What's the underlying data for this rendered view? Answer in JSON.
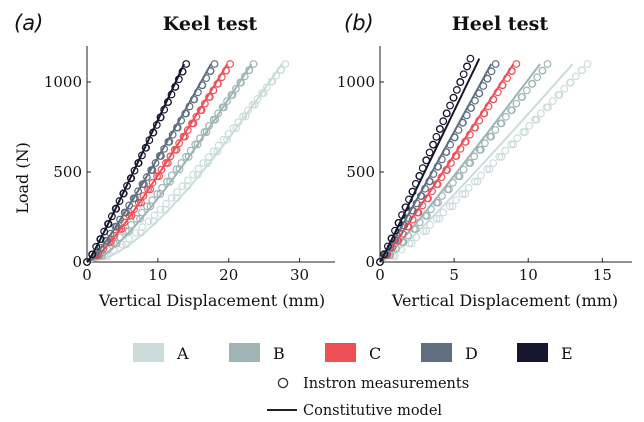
{
  "panels": [
    {
      "tag": "(",
      "tag_letter": "a",
      "tag_close": ")",
      "title": "Keel test"
    },
    {
      "tag": "(",
      "tag_letter": "b",
      "tag_close": ")",
      "title": "Heel test"
    }
  ],
  "legend": {
    "series": [
      {
        "name": "A",
        "color": "#ccdcdb"
      },
      {
        "name": "B",
        "color": "#9fb4b5"
      },
      {
        "name": "C",
        "color": "#ef5056"
      },
      {
        "name": "D",
        "color": "#5f6f80"
      },
      {
        "name": "E",
        "color": "#16162e"
      }
    ],
    "markers_label": "Instron measurements",
    "line_label": "Constitutive model"
  },
  "chart_data": [
    {
      "type": "scatter",
      "title": "Keel test",
      "xlabel": "Vertical Displacement (mm)",
      "ylabel": "Load (N)",
      "xlim": [
        0,
        35
      ],
      "ylim": [
        0,
        1200
      ],
      "xticks": [
        0,
        10,
        20,
        30
      ],
      "yticks": [
        0,
        500,
        1000
      ],
      "grid": false,
      "series": [
        {
          "name": "A",
          "color": "#ccdcdb",
          "xmax_meas": 28,
          "xmax_model": 27.5,
          "ymax": 1100,
          "curv_meas": 0.42,
          "curv_model": 0.62,
          "npts": 34
        },
        {
          "name": "B",
          "color": "#9fb4b5",
          "xmax_meas": 23.5,
          "xmax_model": 23.2,
          "ymax": 1100,
          "curv_meas": 0.32,
          "curv_model": 0.45,
          "npts": 32
        },
        {
          "name": "C",
          "color": "#ef5056",
          "xmax_meas": 20.2,
          "xmax_model": 19.8,
          "ymax": 1100,
          "curv_meas": 0.25,
          "curv_model": 0.3,
          "npts": 30
        },
        {
          "name": "D",
          "color": "#5f6f80",
          "xmax_meas": 18,
          "xmax_model": 17.5,
          "ymax": 1100,
          "curv_meas": 0.18,
          "curv_model": 0.22,
          "npts": 28
        },
        {
          "name": "E",
          "color": "#16162e",
          "xmax_meas": 14,
          "xmax_model": 13.7,
          "ymax": 1100,
          "curv_meas": 0.08,
          "curv_model": 0.1,
          "npts": 26
        }
      ]
    },
    {
      "type": "scatter",
      "title": "Heel test",
      "xlabel": "Vertical Displacement (mm)",
      "ylabel": "",
      "xlim": [
        0,
        17
      ],
      "ylim": [
        0,
        1200
      ],
      "xticks": [
        0,
        5,
        10,
        15
      ],
      "yticks": [
        0,
        500,
        1000
      ],
      "grid": false,
      "series": [
        {
          "name": "A",
          "color": "#ccdcdb",
          "xmax_meas": 14,
          "xmax_model": 13,
          "ymax": 1100,
          "curv_meas": 0.22,
          "curv_model": 0.18,
          "npts": 32
        },
        {
          "name": "B",
          "color": "#9fb4b5",
          "xmax_meas": 11.3,
          "xmax_model": 10.8,
          "ymax": 1100,
          "curv_meas": 0.15,
          "curv_model": 0.12,
          "npts": 30
        },
        {
          "name": "C",
          "color": "#ef5056",
          "xmax_meas": 9.2,
          "xmax_model": 9,
          "ymax": 1100,
          "curv_meas": 0.1,
          "curv_model": 0.08,
          "npts": 28
        },
        {
          "name": "D",
          "color": "#5f6f80",
          "xmax_meas": 7.8,
          "xmax_model": 7.5,
          "ymax": 1100,
          "curv_meas": 0.08,
          "curv_model": 0.06,
          "npts": 27
        },
        {
          "name": "E",
          "color": "#16162e",
          "xmax_meas": 6.1,
          "xmax_model": 6.7,
          "ymax": 1130,
          "curv_meas": 0.05,
          "curv_model": 0.03,
          "npts": 26
        }
      ]
    }
  ]
}
